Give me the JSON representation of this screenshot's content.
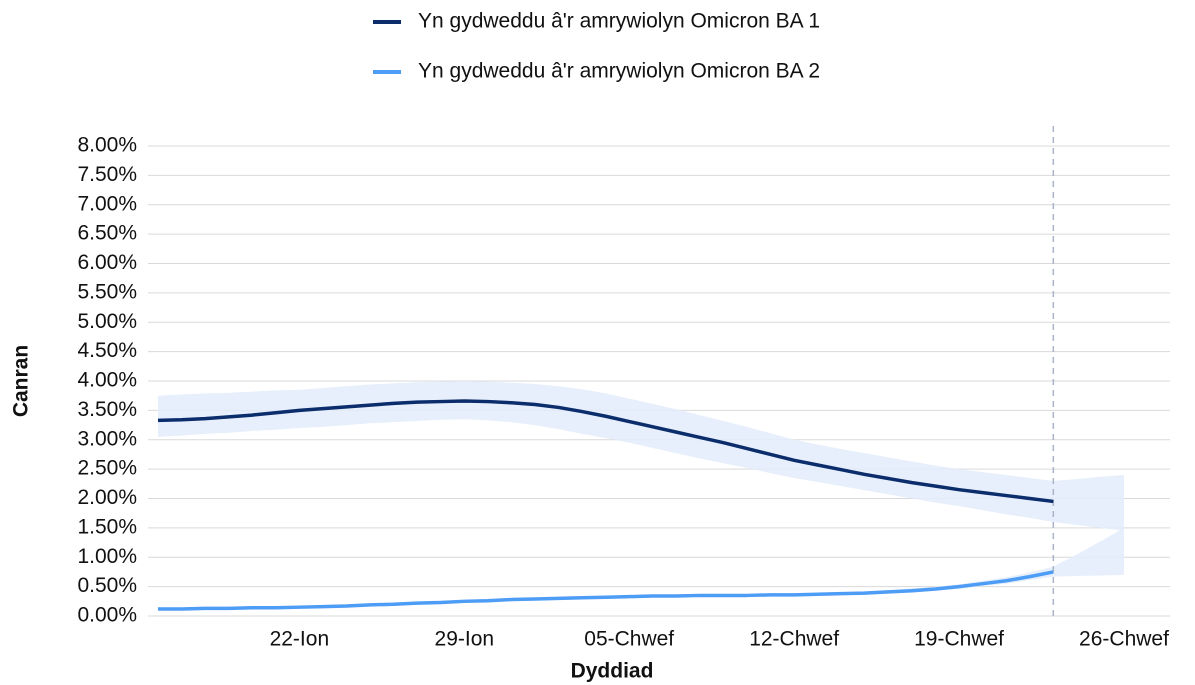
{
  "chart_data": {
    "type": "line",
    "x_label": "Dyddiad",
    "y_label": "Canran",
    "categories": [
      null,
      null,
      null,
      null,
      null,
      null,
      "22-Ion",
      null,
      null,
      null,
      null,
      null,
      null,
      "29-Ion",
      null,
      null,
      null,
      null,
      null,
      null,
      "05-Chwef",
      null,
      null,
      null,
      null,
      null,
      null,
      "12-Chwef",
      null,
      null,
      null,
      null,
      null,
      null,
      "19-Chwef",
      null,
      null,
      null,
      null,
      null,
      null,
      "26-Chwef"
    ],
    "series": [
      {
        "name": "Yn gydweddu â'r amrywiolyn Omicron BA 1",
        "color": "#0b2d6b",
        "band_color": "#e3ecfb",
        "values": [
          3.33,
          3.34,
          3.36,
          3.39,
          3.42,
          3.46,
          3.5,
          3.53,
          3.56,
          3.59,
          3.62,
          3.64,
          3.65,
          3.66,
          3.65,
          3.63,
          3.6,
          3.55,
          3.48,
          3.4,
          3.31,
          3.22,
          3.13,
          3.04,
          2.95,
          2.85,
          2.75,
          2.65,
          2.57,
          2.49,
          2.41,
          2.34,
          2.27,
          2.21,
          2.15,
          2.1,
          2.05,
          2.0,
          1.95,
          null,
          null,
          null
        ],
        "lower": [
          3.05,
          3.07,
          3.1,
          3.12,
          3.15,
          3.17,
          3.2,
          3.22,
          3.25,
          3.28,
          3.3,
          3.32,
          3.34,
          3.35,
          3.33,
          3.3,
          3.25,
          3.18,
          3.1,
          3.03,
          2.95,
          2.86,
          2.77,
          2.68,
          2.6,
          2.52,
          2.43,
          2.35,
          2.28,
          2.21,
          2.14,
          2.07,
          2.0,
          1.93,
          1.87,
          1.8,
          1.73,
          1.67,
          1.6,
          1.55,
          1.5,
          1.45
        ],
        "upper": [
          3.75,
          3.77,
          3.79,
          3.8,
          3.82,
          3.84,
          3.85,
          3.88,
          3.91,
          3.94,
          3.96,
          3.98,
          3.99,
          4.0,
          3.99,
          3.97,
          3.95,
          3.91,
          3.86,
          3.79,
          3.7,
          3.61,
          3.52,
          3.42,
          3.32,
          3.22,
          3.11,
          3.0,
          2.92,
          2.84,
          2.77,
          2.7,
          2.63,
          2.56,
          2.5,
          2.45,
          2.4,
          2.35,
          2.3,
          2.33,
          2.37,
          2.4
        ]
      },
      {
        "name": "Yn gydweddu â'r amrywiolyn Omicron BA 2",
        "color": "#4d9cf5",
        "band_color": "#e3ecfb",
        "values": [
          0.12,
          0.12,
          0.13,
          0.13,
          0.14,
          0.14,
          0.15,
          0.16,
          0.17,
          0.19,
          0.2,
          0.22,
          0.23,
          0.25,
          0.26,
          0.28,
          0.29,
          0.3,
          0.31,
          0.32,
          0.33,
          0.34,
          0.34,
          0.35,
          0.35,
          0.35,
          0.36,
          0.36,
          0.37,
          0.38,
          0.39,
          0.41,
          0.43,
          0.46,
          0.5,
          0.55,
          0.6,
          0.67,
          0.75,
          null,
          null,
          null
        ],
        "lower": [
          0.1,
          0.1,
          0.11,
          0.11,
          0.12,
          0.12,
          0.13,
          0.14,
          0.15,
          0.17,
          0.18,
          0.2,
          0.21,
          0.23,
          0.24,
          0.26,
          0.27,
          0.28,
          0.29,
          0.3,
          0.31,
          0.32,
          0.32,
          0.33,
          0.33,
          0.33,
          0.34,
          0.34,
          0.35,
          0.36,
          0.37,
          0.38,
          0.4,
          0.43,
          0.46,
          0.51,
          0.55,
          0.61,
          0.67,
          0.68,
          0.69,
          0.7
        ],
        "upper": [
          0.14,
          0.14,
          0.15,
          0.15,
          0.16,
          0.16,
          0.17,
          0.18,
          0.19,
          0.21,
          0.22,
          0.24,
          0.25,
          0.27,
          0.28,
          0.3,
          0.31,
          0.32,
          0.33,
          0.34,
          0.35,
          0.36,
          0.36,
          0.37,
          0.37,
          0.37,
          0.38,
          0.38,
          0.39,
          0.4,
          0.42,
          0.44,
          0.47,
          0.5,
          0.54,
          0.6,
          0.66,
          0.74,
          0.84,
          1.05,
          1.27,
          1.5
        ]
      }
    ],
    "ylim": [
      0,
      8
    ],
    "yticks": [
      {
        "value": 0,
        "label": "0.00%"
      },
      {
        "value": 0.5,
        "label": "0.50%"
      },
      {
        "value": 1,
        "label": "1.00%"
      },
      {
        "value": 1.5,
        "label": "1.50%"
      },
      {
        "value": 2,
        "label": "2.00%"
      },
      {
        "value": 2.5,
        "label": "2.50%"
      },
      {
        "value": 3,
        "label": "3.00%"
      },
      {
        "value": 3.5,
        "label": "3.50%"
      },
      {
        "value": 4,
        "label": "4.00%"
      },
      {
        "value": 4.5,
        "label": "4.50%"
      },
      {
        "value": 5,
        "label": "5.00%"
      },
      {
        "value": 5.5,
        "label": "5.50%"
      },
      {
        "value": 6,
        "label": "6.00%"
      },
      {
        "value": 6.5,
        "label": "6.50%"
      },
      {
        "value": 7,
        "label": "7.00%"
      },
      {
        "value": 7.5,
        "label": "7.50%"
      },
      {
        "value": 8,
        "label": "8.00%"
      }
    ],
    "grid": true
  }
}
